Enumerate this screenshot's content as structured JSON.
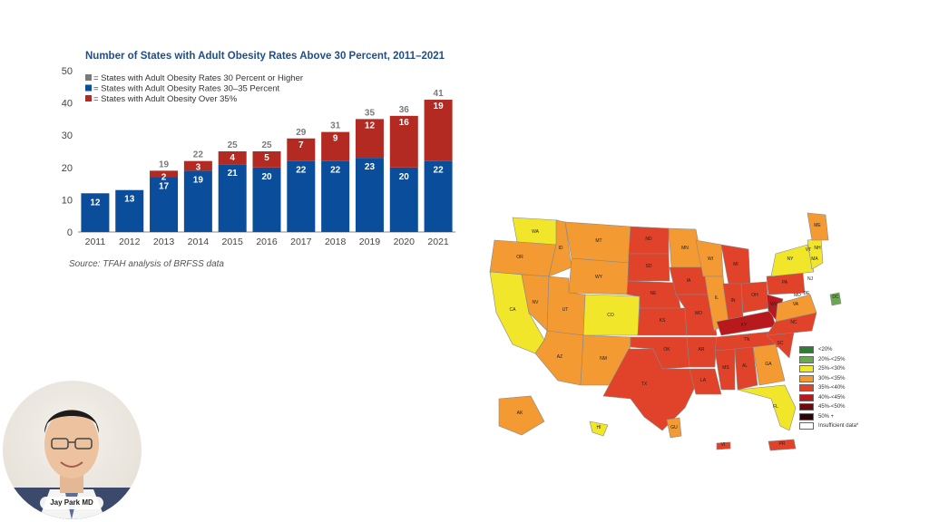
{
  "chart_data": {
    "type": "bar",
    "title": "Number of States with Adult Obesity Rates Above 30 Percent, 2011–2021",
    "categories": [
      "2011",
      "2012",
      "2013",
      "2014",
      "2015",
      "2016",
      "2017",
      "2018",
      "2019",
      "2020",
      "2021"
    ],
    "series": [
      {
        "name": "= States with Adult Obesity Rates 30–35 Percent",
        "color": "#0a4e9b",
        "values": [
          12,
          13,
          17,
          19,
          21,
          20,
          22,
          22,
          23,
          20,
          22
        ]
      },
      {
        "name": "= States with Adult Obesity Over 35%",
        "color": "#b22a22",
        "values": [
          0,
          0,
          2,
          3,
          4,
          5,
          7,
          9,
          12,
          16,
          19
        ]
      }
    ],
    "totals": [
      12,
      13,
      19,
      22,
      25,
      25,
      29,
      31,
      35,
      36,
      41
    ],
    "totals_label_color": "#7a7a7a",
    "legend": [
      {
        "label": "= States with Adult Obesity Rates 30 Percent or Higher",
        "color": "#7a7a7a"
      },
      {
        "label": "= States with Adult Obesity Rates 30–35 Percent",
        "color": "#0a4e9b"
      },
      {
        "label": "= States with Adult Obesity Over 35%",
        "color": "#b22a22"
      }
    ],
    "legend_position": "top-left",
    "y_ticks": [
      0,
      10,
      20,
      30,
      40,
      50
    ],
    "ylim": [
      0,
      50
    ],
    "grid": false,
    "source": "Source: TFAH analysis of BRFSS data"
  },
  "map": {
    "legend": [
      {
        "label": "<20%",
        "color": "#2e7d32"
      },
      {
        "label": "20%-<25%",
        "color": "#6aa84f"
      },
      {
        "label": "25%-<30%",
        "color": "#f2e62b"
      },
      {
        "label": "30%-<35%",
        "color": "#f39a32"
      },
      {
        "label": "35%-<40%",
        "color": "#e0422a"
      },
      {
        "label": "40%-<45%",
        "color": "#b8191d"
      },
      {
        "label": "45%-<50%",
        "color": "#6d0a0f"
      },
      {
        "label": "50% +",
        "color": "#2b0508"
      },
      {
        "label": "Insufficient data*",
        "color": "#ffffff"
      }
    ],
    "state_labels": [
      "WA",
      "OR",
      "CA",
      "NV",
      "ID",
      "MT",
      "WY",
      "UT",
      "AZ",
      "CO",
      "NM",
      "ND",
      "SD",
      "NE",
      "KS",
      "OK",
      "TX",
      "MN",
      "IA",
      "MO",
      "AR",
      "LA",
      "WI",
      "IL",
      "MI",
      "IN",
      "OH",
      "KY",
      "TN",
      "MS",
      "AL",
      "GA",
      "FL",
      "SC",
      "NC",
      "VA",
      "WV",
      "PA",
      "NY",
      "ME",
      "VT",
      "NH",
      "MA",
      "DE",
      "MD",
      "NJ",
      "DC",
      "AK",
      "HI",
      "GU",
      "PR",
      "VI"
    ]
  },
  "presenter": {
    "name": "Jay Park MD"
  }
}
